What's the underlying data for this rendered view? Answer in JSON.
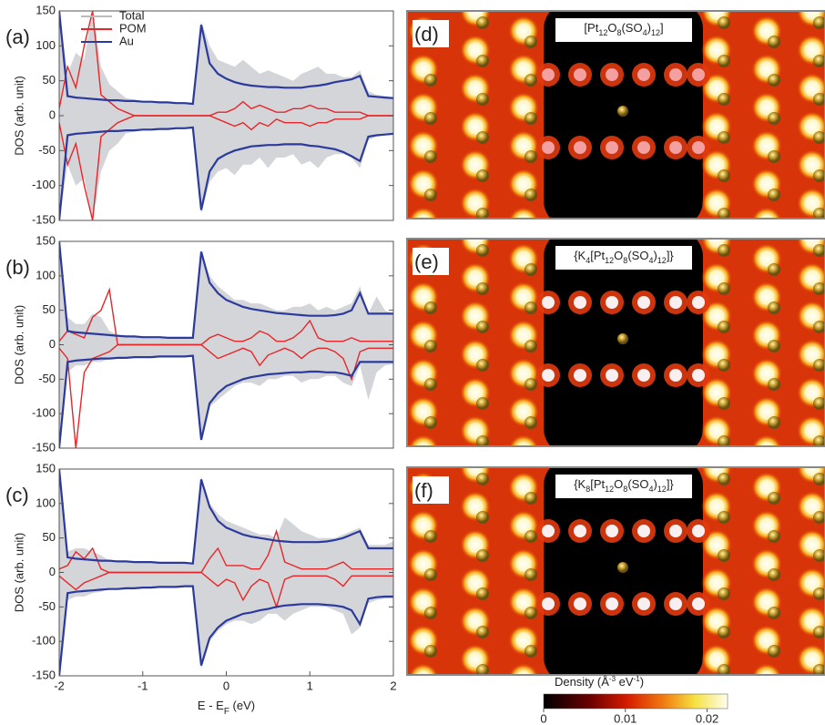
{
  "chart_data": [
    {
      "type": "line",
      "panel": "(a)",
      "ylabel": "DOS (arb. unit)",
      "legend": "upper left",
      "xlim": [
        -2,
        2
      ],
      "ylim": [
        -150,
        150
      ],
      "yticks": [
        -150,
        -100,
        -50,
        0,
        50,
        100,
        150
      ],
      "x": [
        -2.0,
        -1.9,
        -1.8,
        -1.7,
        -1.6,
        -1.5,
        -1.4,
        -1.3,
        -1.2,
        -1.1,
        -1.0,
        -0.9,
        -0.8,
        -0.7,
        -0.6,
        -0.5,
        -0.4,
        -0.3,
        -0.2,
        -0.1,
        0,
        0.1,
        0.2,
        0.3,
        0.4,
        0.5,
        0.6,
        0.7,
        0.8,
        0.9,
        1.0,
        1.1,
        1.2,
        1.3,
        1.4,
        1.5,
        1.6,
        1.7,
        1.8,
        1.9,
        2.0
      ],
      "series": [
        {
          "name": "Total",
          "color": "#d3d5d8",
          "style": "area",
          "values": [
            150,
            60,
            90,
            80,
            150,
            70,
            45,
            35,
            25,
            23,
            21,
            20,
            20,
            19,
            19,
            18,
            18,
            135,
            100,
            80,
            75,
            70,
            80,
            70,
            60,
            65,
            60,
            55,
            50,
            60,
            65,
            70,
            60,
            60,
            55,
            55,
            65,
            35,
            30,
            28,
            27
          ],
          "values_down": [
            -150,
            -70,
            -100,
            -90,
            -150,
            -80,
            -50,
            -40,
            -25,
            -23,
            -21,
            -20,
            -20,
            -19,
            -19,
            -18,
            -18,
            -140,
            -95,
            -80,
            -75,
            -85,
            -70,
            -70,
            -60,
            -75,
            -60,
            -60,
            -55,
            -70,
            -65,
            -75,
            -60,
            -55,
            -55,
            -60,
            -75,
            -35,
            -30,
            -28,
            -27
          ]
        },
        {
          "name": "POM",
          "color": "#e8262a",
          "style": "line",
          "values": [
            10,
            70,
            40,
            100,
            150,
            30,
            20,
            10,
            5,
            0,
            0,
            0,
            0,
            0,
            0,
            0,
            0,
            0,
            0,
            5,
            5,
            10,
            20,
            10,
            15,
            10,
            5,
            5,
            10,
            10,
            15,
            10,
            10,
            5,
            5,
            5,
            5,
            0,
            0,
            0,
            0
          ],
          "values_down": [
            -10,
            -70,
            -40,
            -100,
            -150,
            -30,
            -20,
            -10,
            -5,
            0,
            0,
            0,
            0,
            0,
            0,
            0,
            0,
            0,
            0,
            -5,
            -10,
            -15,
            -10,
            -20,
            -10,
            -15,
            -5,
            -10,
            -10,
            -10,
            -15,
            -10,
            -10,
            -5,
            -5,
            -5,
            -5,
            0,
            0,
            0,
            0
          ]
        },
        {
          "name": "Au",
          "color": "#2b3a9c",
          "style": "line",
          "values": [
            150,
            28,
            26,
            25,
            24,
            23,
            22,
            22,
            21,
            21,
            20,
            20,
            19,
            19,
            18,
            18,
            17,
            130,
            75,
            60,
            53,
            48,
            45,
            43,
            42,
            41,
            41,
            40,
            40,
            40,
            42,
            43,
            45,
            48,
            50,
            52,
            57,
            28,
            27,
            26,
            25
          ],
          "values_down": [
            -150,
            -28,
            -26,
            -25,
            -24,
            -23,
            -22,
            -22,
            -21,
            -21,
            -20,
            -20,
            -19,
            -19,
            -18,
            -18,
            -17,
            -135,
            -80,
            -62,
            -55,
            -50,
            -47,
            -44,
            -43,
            -42,
            -42,
            -41,
            -41,
            -41,
            -43,
            -44,
            -46,
            -48,
            -52,
            -58,
            -65,
            -30,
            -28,
            -27,
            -26
          ]
        }
      ]
    },
    {
      "type": "line",
      "panel": "(b)",
      "ylabel": "DOS (arb. unit)",
      "xlim": [
        -2,
        2
      ],
      "ylim": [
        -150,
        150
      ],
      "yticks": [
        -150,
        -100,
        -50,
        0,
        50,
        100,
        150
      ],
      "x": [
        -2.0,
        -1.9,
        -1.8,
        -1.7,
        -1.6,
        -1.5,
        -1.4,
        -1.3,
        -1.2,
        -1.1,
        -1.0,
        -0.9,
        -0.8,
        -0.7,
        -0.6,
        -0.5,
        -0.4,
        -0.3,
        -0.2,
        -0.1,
        0,
        0.1,
        0.2,
        0.3,
        0.4,
        0.5,
        0.6,
        0.7,
        0.8,
        0.9,
        1.0,
        1.1,
        1.2,
        1.3,
        1.4,
        1.5,
        1.6,
        1.7,
        1.8,
        1.9,
        2.0
      ],
      "series": [
        {
          "color": "#d3d5d8",
          "style": "area",
          "values": [
            150,
            40,
            30,
            30,
            45,
            40,
            20,
            15,
            13,
            12,
            11,
            11,
            11,
            10,
            10,
            10,
            10,
            135,
            100,
            85,
            75,
            65,
            65,
            60,
            60,
            55,
            50,
            50,
            55,
            55,
            60,
            50,
            55,
            50,
            55,
            60,
            85,
            45,
            70,
            50,
            45
          ],
          "values_down": [
            -150,
            -40,
            -30,
            -30,
            -25,
            -25,
            -20,
            -19,
            -19,
            -18,
            -18,
            -18,
            -17,
            -17,
            -17,
            -17,
            -16,
            -140,
            -90,
            -80,
            -70,
            -60,
            -55,
            -55,
            -60,
            -50,
            -50,
            -45,
            -45,
            -55,
            -50,
            -50,
            -45,
            -45,
            -55,
            -60,
            -30,
            -80,
            -40,
            -30,
            -28
          ]
        },
        {
          "color": "#e8262a",
          "style": "line",
          "values": [
            5,
            20,
            15,
            10,
            40,
            50,
            80,
            0,
            0,
            0,
            0,
            0,
            0,
            0,
            0,
            0,
            0,
            0,
            10,
            15,
            10,
            5,
            5,
            10,
            20,
            15,
            5,
            5,
            10,
            20,
            35,
            10,
            5,
            5,
            5,
            10,
            5,
            5,
            5,
            5,
            5
          ],
          "values_down": [
            -5,
            -20,
            -150,
            -40,
            -20,
            -15,
            -10,
            0,
            0,
            0,
            0,
            0,
            0,
            0,
            0,
            0,
            0,
            0,
            -10,
            -20,
            -15,
            -10,
            -5,
            -10,
            -30,
            -15,
            -10,
            -5,
            -10,
            -20,
            -10,
            -5,
            -5,
            -10,
            -20,
            -50,
            -10,
            -5,
            -5,
            -5,
            -5
          ]
        },
        {
          "color": "#2b3a9c",
          "style": "line",
          "values": [
            150,
            20,
            18,
            17,
            16,
            15,
            14,
            13,
            12,
            12,
            11,
            11,
            11,
            10,
            10,
            10,
            10,
            135,
            90,
            75,
            65,
            60,
            55,
            52,
            50,
            48,
            46,
            45,
            44,
            43,
            42,
            42,
            42,
            43,
            45,
            50,
            75,
            45,
            45,
            45,
            45
          ],
          "values_down": [
            -150,
            -25,
            -23,
            -22,
            -21,
            -20,
            -20,
            -19,
            -19,
            -18,
            -18,
            -18,
            -17,
            -17,
            -17,
            -17,
            -16,
            -138,
            -85,
            -70,
            -60,
            -55,
            -50,
            -47,
            -45,
            -43,
            -42,
            -41,
            -40,
            -40,
            -39,
            -39,
            -40,
            -40,
            -42,
            -45,
            -25,
            -25,
            -25,
            -25,
            -25
          ]
        }
      ]
    },
    {
      "type": "line",
      "panel": "(c)",
      "ylabel": "DOS (arb. unit)",
      "xlabel": [
        "E - E",
        "F",
        " (eV)"
      ],
      "xlim": [
        -2,
        2
      ],
      "xticks": [
        -2,
        -1,
        0,
        1,
        2
      ],
      "ylim": [
        -150,
        150
      ],
      "yticks": [
        -150,
        -100,
        -50,
        0,
        50,
        100,
        150
      ],
      "x": [
        -2.0,
        -1.9,
        -1.8,
        -1.7,
        -1.6,
        -1.5,
        -1.4,
        -1.3,
        -1.2,
        -1.1,
        -1.0,
        -0.9,
        -0.8,
        -0.7,
        -0.6,
        -0.5,
        -0.4,
        -0.3,
        -0.2,
        -0.1,
        0,
        0.1,
        0.2,
        0.3,
        0.4,
        0.5,
        0.6,
        0.7,
        0.8,
        0.9,
        1.0,
        1.1,
        1.2,
        1.3,
        1.4,
        1.5,
        1.6,
        1.7,
        1.8,
        1.9,
        2.0
      ],
      "series": [
        {
          "color": "#d3d5d8",
          "style": "area",
          "values": [
            150,
            30,
            35,
            35,
            30,
            25,
            17,
            16,
            16,
            15,
            15,
            15,
            14,
            14,
            14,
            14,
            13,
            140,
            100,
            85,
            75,
            70,
            65,
            60,
            55,
            55,
            50,
            80,
            70,
            60,
            55,
            50,
            50,
            50,
            55,
            60,
            65,
            40,
            40,
            40,
            45
          ],
          "values_down": [
            -150,
            -40,
            -35,
            -35,
            -30,
            -28,
            -24,
            -24,
            -23,
            -23,
            -22,
            -22,
            -21,
            -21,
            -21,
            -20,
            -20,
            -140,
            -100,
            -85,
            -75,
            -70,
            -70,
            -75,
            -70,
            -60,
            -60,
            -70,
            -60,
            -55,
            -50,
            -50,
            -50,
            -55,
            -60,
            -90,
            -80,
            -45,
            -40,
            -38,
            -38
          ]
        },
        {
          "color": "#e8262a",
          "style": "line",
          "values": [
            5,
            10,
            30,
            20,
            35,
            5,
            0,
            0,
            0,
            0,
            0,
            0,
            0,
            0,
            0,
            0,
            0,
            0,
            20,
            35,
            10,
            10,
            10,
            5,
            5,
            25,
            60,
            15,
            10,
            5,
            5,
            5,
            5,
            10,
            15,
            5,
            5,
            5,
            5,
            5,
            5
          ],
          "values_down": [
            -5,
            -15,
            -25,
            -15,
            -10,
            -5,
            0,
            0,
            0,
            0,
            0,
            0,
            0,
            0,
            0,
            0,
            0,
            0,
            -10,
            -20,
            -10,
            -15,
            -40,
            -20,
            -10,
            -15,
            -50,
            -10,
            -5,
            -5,
            -5,
            -5,
            -5,
            -10,
            -20,
            -5,
            -5,
            -5,
            -5,
            -5,
            -5
          ]
        },
        {
          "color": "#2b3a9c",
          "style": "line",
          "values": [
            150,
            22,
            20,
            19,
            18,
            17,
            17,
            16,
            16,
            15,
            15,
            15,
            14,
            14,
            14,
            14,
            13,
            135,
            95,
            75,
            65,
            60,
            55,
            52,
            50,
            48,
            46,
            45,
            44,
            44,
            44,
            44,
            45,
            47,
            50,
            55,
            60,
            35,
            35,
            35,
            35
          ],
          "values_down": [
            -150,
            -30,
            -28,
            -27,
            -26,
            -25,
            -24,
            -24,
            -23,
            -23,
            -22,
            -22,
            -21,
            -21,
            -21,
            -20,
            -20,
            -135,
            -95,
            -80,
            -70,
            -65,
            -60,
            -58,
            -55,
            -53,
            -50,
            -48,
            -47,
            -46,
            -46,
            -46,
            -47,
            -48,
            -50,
            -55,
            -75,
            -38,
            -36,
            -35,
            -35
          ]
        }
      ]
    }
  ],
  "images": [
    {
      "panel": "(d)",
      "formula": [
        "[Pt",
        "12",
        "O",
        "8",
        "(SO",
        "4",
        ")",
        "12",
        "]"
      ]
    },
    {
      "panel": "(e)",
      "formula": [
        "{K",
        "4",
        "[Pt",
        "12",
        "O",
        "8",
        "(SO",
        "4",
        ")",
        "12",
        "]}"
      ]
    },
    {
      "panel": "(f)",
      "formula": [
        "{K",
        "8",
        "[Pt",
        "12",
        "O",
        "8",
        "(SO",
        "4",
        ")",
        "12",
        "]}"
      ]
    }
  ],
  "colorbar": {
    "label": [
      "Density (Å",
      "-3",
      " eV",
      "-1",
      ")"
    ],
    "lim": [
      0,
      0.0225
    ],
    "ticks": [
      0,
      0.01,
      0.02
    ]
  }
}
